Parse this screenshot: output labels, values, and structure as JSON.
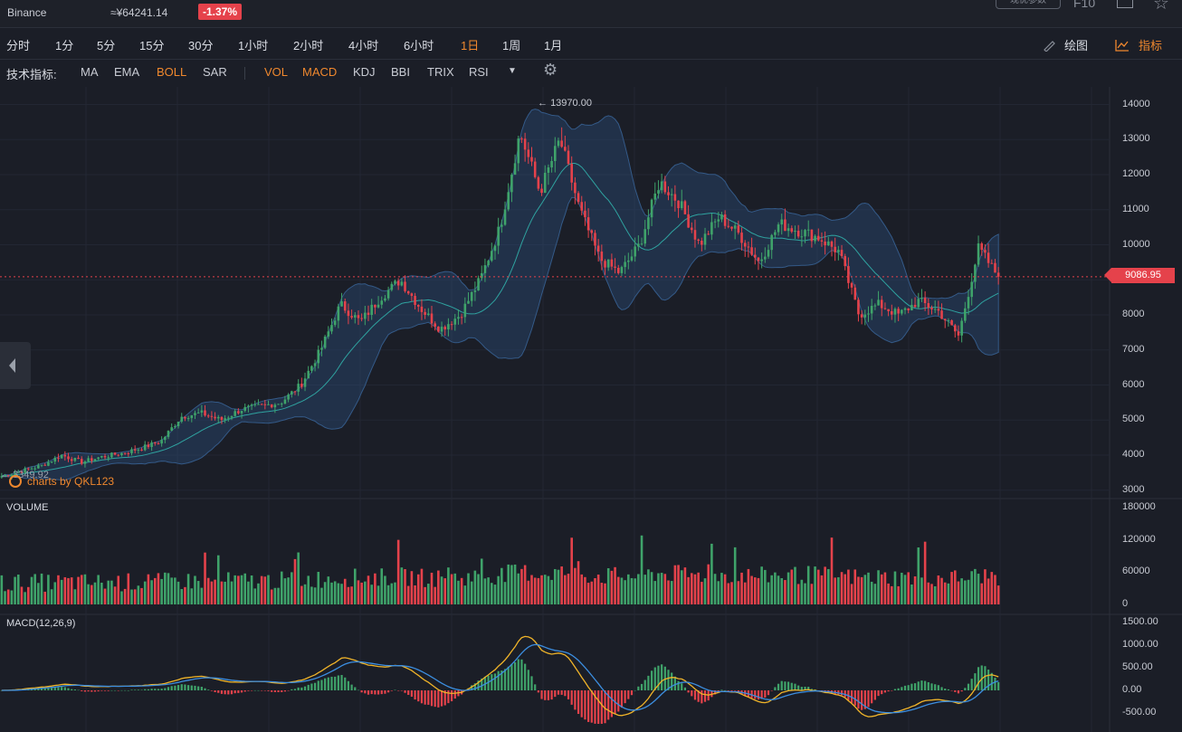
{
  "header": {
    "exchange": "Binance",
    "cny_price": "≈¥64241.14",
    "change": "-1.37%",
    "param_button": "现优参数",
    "f10_label": "F10"
  },
  "timeframes": [
    {
      "label": "分时"
    },
    {
      "label": "1分"
    },
    {
      "label": "5分"
    },
    {
      "label": "15分"
    },
    {
      "label": "30分"
    },
    {
      "label": "1小时"
    },
    {
      "label": "2小时"
    },
    {
      "label": "4小时"
    },
    {
      "label": "6小时"
    },
    {
      "label": "1日",
      "active": true
    },
    {
      "label": "1周"
    },
    {
      "label": "1月"
    }
  ],
  "tools": {
    "draw": "绘图",
    "indicator": "指标"
  },
  "indicators": {
    "label": "技术指标:",
    "main": [
      {
        "label": "MA"
      },
      {
        "label": "EMA"
      },
      {
        "label": "BOLL",
        "active": true
      },
      {
        "label": "SAR"
      }
    ],
    "sub": [
      {
        "label": "VOL",
        "active": true
      },
      {
        "label": "MACD",
        "active": true
      },
      {
        "label": "KDJ"
      },
      {
        "label": "BBI"
      },
      {
        "label": "TRIX"
      },
      {
        "label": "RSI"
      }
    ]
  },
  "price_axis": [
    "14000",
    "13000",
    "12000",
    "11000",
    "10000",
    "9000",
    "8000",
    "7000",
    "6000",
    "5000",
    "4000",
    "3000"
  ],
  "current_price": "9086.95",
  "high_label": "13970.00",
  "low_label": "3349.92",
  "watermark": "charts by QKL123",
  "volume_panel": {
    "title": "VOLUME",
    "axis": [
      "180000",
      "120000",
      "60000",
      "0"
    ]
  },
  "macd_panel": {
    "title": "MACD(12,26,9)",
    "axis": [
      "1500.00",
      "1000.00",
      "500.00",
      "0.00",
      "-500.00"
    ]
  },
  "colors": {
    "up": "#3fa36a",
    "down": "#e5424b",
    "accent": "#f0882e",
    "band": "#2b4a73",
    "dif": "#f0b429",
    "dea": "#3c8ee0"
  },
  "chart_data": {
    "type": "candlestick",
    "period": "1日",
    "close_anchors": [
      3400,
      3550,
      3700,
      4000,
      3800,
      3950,
      4050,
      4200,
      4400,
      5100,
      5200,
      5000,
      5300,
      5400,
      5500,
      6000,
      7000,
      8300,
      7800,
      8500,
      9000,
      8200,
      7600,
      8000,
      9000,
      10500,
      13200,
      11500,
      13000,
      11000,
      9600,
      9200,
      10000,
      11800,
      11200,
      10000,
      10800,
      10300,
      9500,
      10600,
      10400,
      10200,
      9800,
      8000,
      8300,
      8000,
      8400,
      8100,
      7400,
      9900,
      9087
    ],
    "ylim": [
      3000,
      14500
    ],
    "volume_ylim": [
      0,
      180000
    ],
    "macd_ylim": [
      -500,
      1500
    ],
    "high": 13970.0,
    "low": 3349.92,
    "last": 9086.95
  }
}
